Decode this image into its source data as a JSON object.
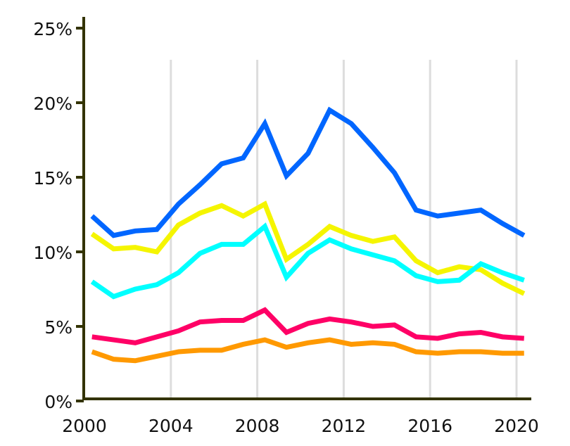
{
  "chart_data": {
    "type": "line",
    "title": "",
    "xlabel": "",
    "ylabel": "",
    "xlim": [
      2000,
      2020.6
    ],
    "ylim": [
      0,
      25
    ],
    "grid": "vertical lines at x ticks",
    "x_ticks": [
      2000,
      2004,
      2008,
      2012,
      2016,
      2020
    ],
    "x_tick_labels": [
      "2000",
      "2004",
      "2008",
      "2012",
      "2016",
      "2020"
    ],
    "y_ticks": [
      0,
      5,
      10,
      15,
      20,
      25
    ],
    "y_tick_labels": [
      "0%",
      "5%",
      "10%",
      "15%",
      "20%",
      "25%"
    ],
    "x": [
      2000,
      2001,
      2002,
      2003,
      2004,
      2005,
      2006,
      2007,
      2008,
      2009,
      2010,
      2011,
      2012,
      2013,
      2014,
      2015,
      2016,
      2017,
      2018,
      2019,
      2020
    ],
    "series": [
      {
        "color": "#0066ff",
        "values": [
          12.4,
          11.1,
          11.4,
          11.5,
          13.2,
          14.5,
          15.9,
          16.3,
          18.6,
          15.1,
          16.6,
          19.5,
          18.6,
          17.0,
          15.3,
          12.8,
          12.4,
          12.6,
          12.8,
          11.9,
          11.1
        ]
      },
      {
        "color": "#f5f500",
        "values": [
          11.2,
          10.2,
          10.3,
          10.0,
          11.8,
          12.6,
          13.1,
          12.4,
          13.2,
          9.5,
          10.5,
          11.7,
          11.1,
          10.7,
          11.0,
          9.4,
          8.6,
          9.0,
          8.8,
          7.9,
          7.2
        ]
      },
      {
        "color": "#00ffff",
        "values": [
          8.0,
          7.0,
          7.5,
          7.8,
          8.6,
          9.9,
          10.5,
          10.5,
          11.7,
          8.3,
          9.9,
          10.8,
          10.2,
          9.8,
          9.4,
          8.4,
          8.0,
          8.1,
          9.2,
          8.6,
          8.1
        ]
      },
      {
        "color": "#ff0066",
        "values": [
          4.3,
          4.1,
          3.9,
          4.3,
          4.7,
          5.3,
          5.4,
          5.4,
          6.1,
          4.6,
          5.2,
          5.5,
          5.3,
          5.0,
          5.1,
          4.3,
          4.2,
          4.5,
          4.6,
          4.3,
          4.2
        ]
      },
      {
        "color": "#ff9900",
        "values": [
          3.3,
          2.8,
          2.7,
          3.0,
          3.3,
          3.4,
          3.4,
          3.8,
          4.1,
          3.6,
          3.9,
          4.1,
          3.8,
          3.9,
          3.8,
          3.3,
          3.2,
          3.3,
          3.3,
          3.2,
          3.2
        ]
      }
    ],
    "axis_color": "#333300",
    "grid_color": "#dddddd"
  }
}
